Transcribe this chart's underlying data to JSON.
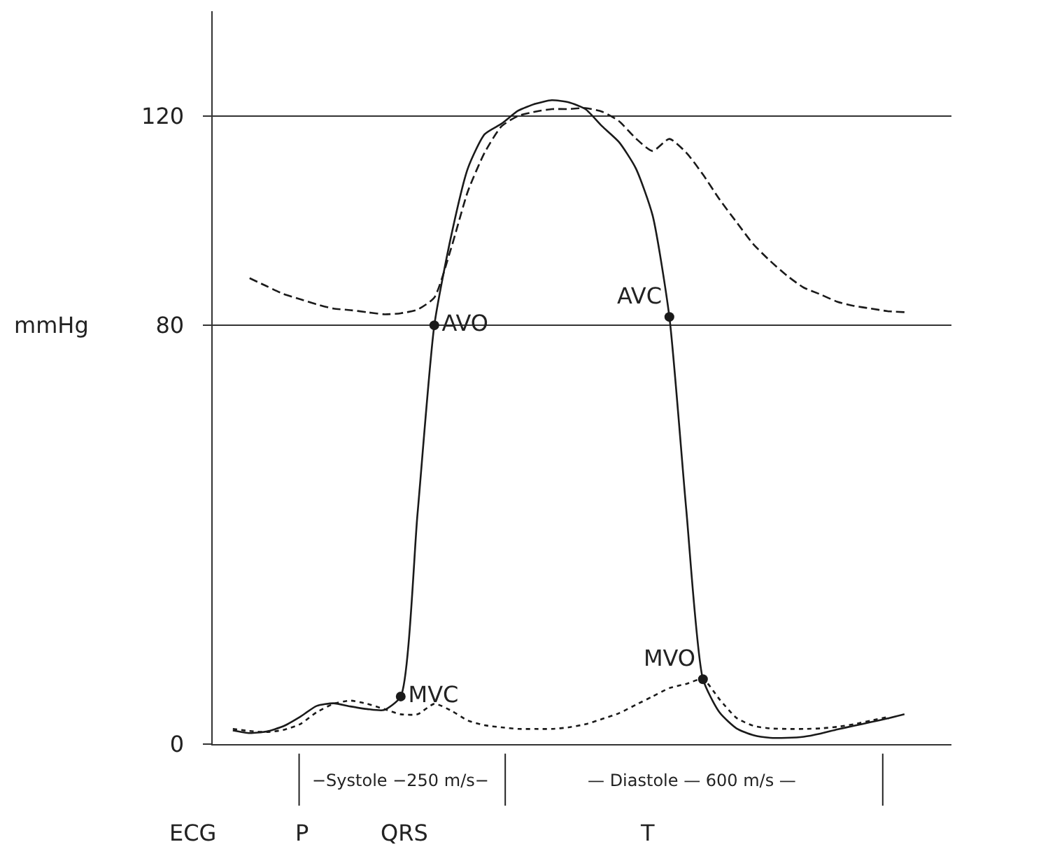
{
  "chart_data": {
    "type": "line",
    "ylabel": "mmHg",
    "categories": [
      null,
      null,
      null,
      null,
      null,
      null,
      null,
      null,
      null,
      null,
      null,
      null,
      null,
      null,
      null,
      null,
      null,
      null,
      null,
      null,
      null,
      null,
      null,
      null,
      null,
      null,
      null,
      null,
      null,
      null,
      null,
      null,
      null,
      null,
      null,
      null,
      null,
      null,
      null,
      null,
      null,
      null,
      null
    ],
    "series": [
      {
        "color": "#1a1a1a",
        "line_style": "solid",
        "values": [
          null,
          2.6,
          2.1,
          2.4,
          3.4,
          5.2,
          7.3,
          7.8,
          7.2,
          6.7,
          6.5,
          9.1,
          44,
          80,
          97,
          110,
          116.5,
          118.5,
          121,
          122.3,
          123,
          122.6,
          121.3,
          118,
          115,
          110,
          101,
          81.6,
          45,
          12.4,
          6,
          3,
          1.7,
          1.2,
          1.2,
          1.4,
          2.0,
          2.8,
          3.5,
          4.2,
          4.9,
          5.7,
          null
        ]
      },
      {
        "color": "#1a1a1a",
        "line_style": "dashed",
        "values": [
          null,
          null,
          89,
          87.5,
          86,
          85,
          84,
          83.2,
          82.9,
          82.5,
          82.1,
          82.3,
          83,
          85.3,
          94.7,
          105.6,
          113,
          118,
          120,
          120.8,
          121.3,
          121.3,
          121.5,
          120.8,
          119,
          115.7,
          113.3,
          115.6,
          113,
          108.8,
          104,
          99.7,
          95.5,
          92.3,
          89.5,
          87.2,
          85.9,
          84.5,
          83.7,
          83.2,
          82.7,
          82.5,
          null
        ]
      },
      {
        "color": "#1a1a1a",
        "line_style": "dotted",
        "values": [
          null,
          2.9,
          2.5,
          2.3,
          2.7,
          3.8,
          6.1,
          7.7,
          8.3,
          7.7,
          6.7,
          5.7,
          5.7,
          7.7,
          6.4,
          4.5,
          3.6,
          3.2,
          2.9,
          2.9,
          2.9,
          3.2,
          3.8,
          4.8,
          5.9,
          7.5,
          9.1,
          10.7,
          11.5,
          12.4,
          8.5,
          5,
          3.5,
          3.0,
          2.9,
          2.9,
          3.0,
          3.3,
          3.8,
          4.5,
          5.2,
          null,
          null
        ]
      },
      {
        "type": "scatter",
        "color": "#1a1a1a",
        "marker": "circle",
        "values": [
          null,
          null,
          null,
          null,
          null,
          null,
          null,
          null,
          null,
          null,
          null,
          9.1,
          null,
          80,
          null,
          null,
          null,
          null,
          null,
          null,
          null,
          null,
          null,
          null,
          null,
          null,
          null,
          81.6,
          null,
          12.4,
          null,
          null,
          null,
          null,
          null,
          null,
          null,
          null,
          null,
          null,
          null,
          null,
          null
        ],
        "value_labels": [
          null,
          null,
          null,
          null,
          null,
          null,
          null,
          null,
          null,
          null,
          null,
          "MVC",
          null,
          "AVO",
          null,
          null,
          null,
          null,
          null,
          null,
          null,
          null,
          null,
          null,
          null,
          null,
          null,
          "AVC",
          null,
          "MVO",
          null,
          null,
          null,
          null,
          null,
          null,
          null,
          null,
          null,
          null,
          null,
          null,
          null
        ]
      }
    ],
    "ylim": [
      0,
      140
    ],
    "yticks": [
      0,
      80,
      120
    ],
    "grid": "y",
    "tick_labels": "y",
    "annotations": [
      "−Systole −250 m/s−",
      "— Diastole — 600 m/s —",
      "ECG",
      "P",
      "QRS",
      "T"
    ]
  }
}
